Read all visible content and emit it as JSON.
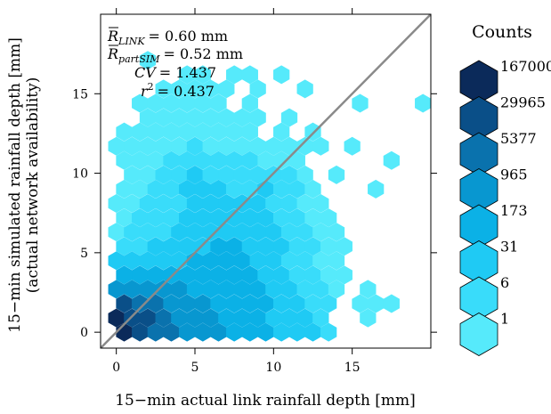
{
  "chart_data": {
    "type": "hexbin",
    "xlabel": "15−min actual link rainfall depth [mm]",
    "ylabel_line1": "15−min simulated rainfall depth [mm]",
    "ylabel_line2": "(actual network availability)",
    "xlim": [
      -1,
      20
    ],
    "ylim": [
      -1,
      20
    ],
    "x_ticks": [
      0,
      5,
      10,
      15
    ],
    "y_ticks": [
      0,
      5,
      10,
      15
    ],
    "x_tick_labels": [
      "0",
      "5",
      "10",
      "15"
    ],
    "y_tick_labels": [
      "0",
      "5",
      "10",
      "15"
    ],
    "reference_line": {
      "type": "1:1",
      "color": "#8a8a8a"
    },
    "annotations": {
      "r_link": {
        "symbol": "R",
        "subscript": "LINK",
        "value_text": "= 0.60 mm"
      },
      "r_partsim": {
        "symbol": "R",
        "subscript": "partSIM",
        "value_text": "= 0.52 mm"
      },
      "cv": {
        "label": "CV",
        "value_text": "= 1.437"
      },
      "r2": {
        "label": "r",
        "superscript": "2",
        "value_text": "= 0.437"
      }
    },
    "legend": {
      "title": "Counts",
      "levels": [
        "167000",
        "29965",
        "5377",
        "965",
        "173",
        "31",
        "6",
        "1"
      ],
      "colors": [
        "#0b2a5a",
        "#0a4f88",
        "#0a72ad",
        "#0897d0",
        "#0bb1e6",
        "#1fcaf4",
        "#39dcfa",
        "#56eafb"
      ]
    },
    "hex_dx": 1.0,
    "bins": [
      {
        "x": 0.5,
        "y": 0.0,
        "l": 0
      },
      {
        "x": 1.5,
        "y": 0.0,
        "l": 1
      },
      {
        "x": 2.5,
        "y": 0.0,
        "l": 2
      },
      {
        "x": 3.5,
        "y": 0.0,
        "l": 2
      },
      {
        "x": 4.5,
        "y": 0.0,
        "l": 3
      },
      {
        "x": 5.5,
        "y": 0.0,
        "l": 3
      },
      {
        "x": 6.5,
        "y": 0.0,
        "l": 3
      },
      {
        "x": 7.5,
        "y": 0.0,
        "l": 4
      },
      {
        "x": 8.5,
        "y": 0.0,
        "l": 4
      },
      {
        "x": 9.5,
        "y": 0.0,
        "l": 4
      },
      {
        "x": 10.5,
        "y": 0.0,
        "l": 5
      },
      {
        "x": 11.5,
        "y": 0.0,
        "l": 5
      },
      {
        "x": 12.5,
        "y": 0.0,
        "l": 5
      },
      {
        "x": 13.5,
        "y": 0.0,
        "l": 6
      },
      {
        "x": 0.0,
        "y": 0.9,
        "l": 0
      },
      {
        "x": 1.0,
        "y": 0.9,
        "l": 1
      },
      {
        "x": 2.0,
        "y": 0.9,
        "l": 1
      },
      {
        "x": 3.0,
        "y": 0.9,
        "l": 2
      },
      {
        "x": 4.0,
        "y": 0.9,
        "l": 3
      },
      {
        "x": 5.0,
        "y": 0.9,
        "l": 3
      },
      {
        "x": 6.0,
        "y": 0.9,
        "l": 3
      },
      {
        "x": 7.0,
        "y": 0.9,
        "l": 4
      },
      {
        "x": 8.0,
        "y": 0.9,
        "l": 4
      },
      {
        "x": 9.0,
        "y": 0.9,
        "l": 4
      },
      {
        "x": 10.0,
        "y": 0.9,
        "l": 5
      },
      {
        "x": 11.0,
        "y": 0.9,
        "l": 5
      },
      {
        "x": 12.0,
        "y": 0.9,
        "l": 5
      },
      {
        "x": 13.0,
        "y": 0.9,
        "l": 6
      },
      {
        "x": 16.0,
        "y": 0.9,
        "l": 7
      },
      {
        "x": 0.5,
        "y": 1.8,
        "l": 1
      },
      {
        "x": 1.5,
        "y": 1.8,
        "l": 2
      },
      {
        "x": 2.5,
        "y": 1.8,
        "l": 2
      },
      {
        "x": 3.5,
        "y": 1.8,
        "l": 3
      },
      {
        "x": 4.5,
        "y": 1.8,
        "l": 3
      },
      {
        "x": 5.5,
        "y": 1.8,
        "l": 3
      },
      {
        "x": 6.5,
        "y": 1.8,
        "l": 4
      },
      {
        "x": 7.5,
        "y": 1.8,
        "l": 4
      },
      {
        "x": 8.5,
        "y": 1.8,
        "l": 4
      },
      {
        "x": 9.5,
        "y": 1.8,
        "l": 4
      },
      {
        "x": 10.5,
        "y": 1.8,
        "l": 5
      },
      {
        "x": 11.5,
        "y": 1.8,
        "l": 5
      },
      {
        "x": 12.5,
        "y": 1.8,
        "l": 6
      },
      {
        "x": 13.5,
        "y": 1.8,
        "l": 6
      },
      {
        "x": 15.5,
        "y": 1.8,
        "l": 7
      },
      {
        "x": 16.5,
        "y": 1.8,
        "l": 7
      },
      {
        "x": 17.5,
        "y": 1.8,
        "l": 7
      },
      {
        "x": 0.0,
        "y": 2.7,
        "l": 3
      },
      {
        "x": 1.0,
        "y": 2.7,
        "l": 3
      },
      {
        "x": 2.0,
        "y": 2.7,
        "l": 3
      },
      {
        "x": 3.0,
        "y": 2.7,
        "l": 3
      },
      {
        "x": 4.0,
        "y": 2.7,
        "l": 3
      },
      {
        "x": 5.0,
        "y": 2.7,
        "l": 4
      },
      {
        "x": 6.0,
        "y": 2.7,
        "l": 4
      },
      {
        "x": 7.0,
        "y": 2.7,
        "l": 4
      },
      {
        "x": 8.0,
        "y": 2.7,
        "l": 4
      },
      {
        "x": 9.0,
        "y": 2.7,
        "l": 4
      },
      {
        "x": 10.0,
        "y": 2.7,
        "l": 5
      },
      {
        "x": 11.0,
        "y": 2.7,
        "l": 5
      },
      {
        "x": 12.0,
        "y": 2.7,
        "l": 6
      },
      {
        "x": 13.0,
        "y": 2.7,
        "l": 6
      },
      {
        "x": 14.0,
        "y": 2.7,
        "l": 7
      },
      {
        "x": 16.0,
        "y": 2.7,
        "l": 7
      },
      {
        "x": 0.5,
        "y": 3.6,
        "l": 4
      },
      {
        "x": 1.5,
        "y": 3.6,
        "l": 4
      },
      {
        "x": 2.5,
        "y": 3.6,
        "l": 4
      },
      {
        "x": 3.5,
        "y": 3.6,
        "l": 4
      },
      {
        "x": 4.5,
        "y": 3.6,
        "l": 4
      },
      {
        "x": 5.5,
        "y": 3.6,
        "l": 4
      },
      {
        "x": 6.5,
        "y": 3.6,
        "l": 4
      },
      {
        "x": 7.5,
        "y": 3.6,
        "l": 4
      },
      {
        "x": 8.5,
        "y": 3.6,
        "l": 4
      },
      {
        "x": 9.5,
        "y": 3.6,
        "l": 5
      },
      {
        "x": 10.5,
        "y": 3.6,
        "l": 5
      },
      {
        "x": 11.5,
        "y": 3.6,
        "l": 6
      },
      {
        "x": 12.5,
        "y": 3.6,
        "l": 6
      },
      {
        "x": 13.5,
        "y": 3.6,
        "l": 7
      },
      {
        "x": 14.5,
        "y": 3.6,
        "l": 7
      },
      {
        "x": 0.0,
        "y": 4.5,
        "l": 5
      },
      {
        "x": 1.0,
        "y": 4.5,
        "l": 5
      },
      {
        "x": 2.0,
        "y": 4.5,
        "l": 5
      },
      {
        "x": 3.0,
        "y": 4.5,
        "l": 5
      },
      {
        "x": 4.0,
        "y": 4.5,
        "l": 5
      },
      {
        "x": 5.0,
        "y": 4.5,
        "l": 4
      },
      {
        "x": 6.0,
        "y": 4.5,
        "l": 4
      },
      {
        "x": 7.0,
        "y": 4.5,
        "l": 4
      },
      {
        "x": 8.0,
        "y": 4.5,
        "l": 4
      },
      {
        "x": 9.0,
        "y": 4.5,
        "l": 5
      },
      {
        "x": 10.0,
        "y": 4.5,
        "l": 5
      },
      {
        "x": 11.0,
        "y": 4.5,
        "l": 6
      },
      {
        "x": 12.0,
        "y": 4.5,
        "l": 6
      },
      {
        "x": 13.0,
        "y": 4.5,
        "l": 7
      },
      {
        "x": 14.0,
        "y": 4.5,
        "l": 7
      },
      {
        "x": 0.5,
        "y": 5.4,
        "l": 6
      },
      {
        "x": 1.5,
        "y": 5.4,
        "l": 6
      },
      {
        "x": 2.5,
        "y": 5.4,
        "l": 5
      },
      {
        "x": 3.5,
        "y": 5.4,
        "l": 5
      },
      {
        "x": 4.5,
        "y": 5.4,
        "l": 5
      },
      {
        "x": 5.5,
        "y": 5.4,
        "l": 5
      },
      {
        "x": 6.5,
        "y": 5.4,
        "l": 4
      },
      {
        "x": 7.5,
        "y": 5.4,
        "l": 4
      },
      {
        "x": 8.5,
        "y": 5.4,
        "l": 5
      },
      {
        "x": 9.5,
        "y": 5.4,
        "l": 5
      },
      {
        "x": 10.5,
        "y": 5.4,
        "l": 5
      },
      {
        "x": 11.5,
        "y": 5.4,
        "l": 6
      },
      {
        "x": 12.5,
        "y": 5.4,
        "l": 6
      },
      {
        "x": 13.5,
        "y": 5.4,
        "l": 7
      },
      {
        "x": 14.5,
        "y": 5.4,
        "l": 7
      },
      {
        "x": 0.0,
        "y": 6.3,
        "l": 7
      },
      {
        "x": 1.0,
        "y": 6.3,
        "l": 6
      },
      {
        "x": 2.0,
        "y": 6.3,
        "l": 6
      },
      {
        "x": 3.0,
        "y": 6.3,
        "l": 6
      },
      {
        "x": 4.0,
        "y": 6.3,
        "l": 5
      },
      {
        "x": 5.0,
        "y": 6.3,
        "l": 5
      },
      {
        "x": 6.0,
        "y": 6.3,
        "l": 5
      },
      {
        "x": 7.0,
        "y": 6.3,
        "l": 5
      },
      {
        "x": 8.0,
        "y": 6.3,
        "l": 5
      },
      {
        "x": 9.0,
        "y": 6.3,
        "l": 5
      },
      {
        "x": 10.0,
        "y": 6.3,
        "l": 5
      },
      {
        "x": 11.0,
        "y": 6.3,
        "l": 6
      },
      {
        "x": 12.0,
        "y": 6.3,
        "l": 6
      },
      {
        "x": 13.0,
        "y": 6.3,
        "l": 7
      },
      {
        "x": 14.0,
        "y": 6.3,
        "l": 7
      },
      {
        "x": 0.5,
        "y": 7.2,
        "l": 7
      },
      {
        "x": 1.5,
        "y": 7.2,
        "l": 6
      },
      {
        "x": 2.5,
        "y": 7.2,
        "l": 6
      },
      {
        "x": 3.5,
        "y": 7.2,
        "l": 6
      },
      {
        "x": 4.5,
        "y": 7.2,
        "l": 5
      },
      {
        "x": 5.5,
        "y": 7.2,
        "l": 5
      },
      {
        "x": 6.5,
        "y": 7.2,
        "l": 5
      },
      {
        "x": 7.5,
        "y": 7.2,
        "l": 5
      },
      {
        "x": 8.5,
        "y": 7.2,
        "l": 5
      },
      {
        "x": 9.5,
        "y": 7.2,
        "l": 5
      },
      {
        "x": 10.5,
        "y": 7.2,
        "l": 6
      },
      {
        "x": 11.5,
        "y": 7.2,
        "l": 6
      },
      {
        "x": 12.5,
        "y": 7.2,
        "l": 7
      },
      {
        "x": 13.5,
        "y": 7.2,
        "l": 7
      },
      {
        "x": 0.0,
        "y": 8.1,
        "l": 7
      },
      {
        "x": 1.0,
        "y": 8.1,
        "l": 7
      },
      {
        "x": 2.0,
        "y": 8.1,
        "l": 6
      },
      {
        "x": 3.0,
        "y": 8.1,
        "l": 6
      },
      {
        "x": 4.0,
        "y": 8.1,
        "l": 6
      },
      {
        "x": 5.0,
        "y": 8.1,
        "l": 5
      },
      {
        "x": 6.0,
        "y": 8.1,
        "l": 5
      },
      {
        "x": 7.0,
        "y": 8.1,
        "l": 5
      },
      {
        "x": 8.0,
        "y": 8.1,
        "l": 5
      },
      {
        "x": 9.0,
        "y": 8.1,
        "l": 5
      },
      {
        "x": 10.0,
        "y": 8.1,
        "l": 6
      },
      {
        "x": 11.0,
        "y": 8.1,
        "l": 6
      },
      {
        "x": 12.0,
        "y": 8.1,
        "l": 7
      },
      {
        "x": 13.0,
        "y": 8.1,
        "l": 7
      },
      {
        "x": 0.5,
        "y": 9.0,
        "l": 7
      },
      {
        "x": 1.5,
        "y": 9.0,
        "l": 7
      },
      {
        "x": 2.5,
        "y": 9.0,
        "l": 6
      },
      {
        "x": 3.5,
        "y": 9.0,
        "l": 6
      },
      {
        "x": 4.5,
        "y": 9.0,
        "l": 5
      },
      {
        "x": 5.5,
        "y": 9.0,
        "l": 5
      },
      {
        "x": 6.5,
        "y": 9.0,
        "l": 5
      },
      {
        "x": 7.5,
        "y": 9.0,
        "l": 6
      },
      {
        "x": 8.5,
        "y": 9.0,
        "l": 6
      },
      {
        "x": 9.5,
        "y": 9.0,
        "l": 5
      },
      {
        "x": 10.5,
        "y": 9.0,
        "l": 6
      },
      {
        "x": 11.5,
        "y": 9.0,
        "l": 6
      },
      {
        "x": 12.5,
        "y": 9.0,
        "l": 7
      },
      {
        "x": 16.5,
        "y": 9.0,
        "l": 7
      },
      {
        "x": 1.0,
        "y": 9.9,
        "l": 7
      },
      {
        "x": 2.0,
        "y": 9.9,
        "l": 7
      },
      {
        "x": 3.0,
        "y": 9.9,
        "l": 6
      },
      {
        "x": 4.0,
        "y": 9.9,
        "l": 6
      },
      {
        "x": 5.0,
        "y": 9.9,
        "l": 5
      },
      {
        "x": 6.0,
        "y": 9.9,
        "l": 6
      },
      {
        "x": 7.0,
        "y": 9.9,
        "l": 6
      },
      {
        "x": 8.0,
        "y": 9.9,
        "l": 6
      },
      {
        "x": 9.0,
        "y": 9.9,
        "l": 6
      },
      {
        "x": 10.0,
        "y": 9.9,
        "l": 6
      },
      {
        "x": 11.0,
        "y": 9.9,
        "l": 6
      },
      {
        "x": 12.0,
        "y": 9.9,
        "l": 7
      },
      {
        "x": 14.0,
        "y": 9.9,
        "l": 7
      },
      {
        "x": 0.5,
        "y": 10.8,
        "l": 7
      },
      {
        "x": 1.5,
        "y": 10.8,
        "l": 7
      },
      {
        "x": 2.5,
        "y": 10.8,
        "l": 7
      },
      {
        "x": 3.5,
        "y": 10.8,
        "l": 6
      },
      {
        "x": 4.5,
        "y": 10.8,
        "l": 6
      },
      {
        "x": 5.5,
        "y": 10.8,
        "l": 6
      },
      {
        "x": 6.5,
        "y": 10.8,
        "l": 6
      },
      {
        "x": 7.5,
        "y": 10.8,
        "l": 6
      },
      {
        "x": 8.5,
        "y": 10.8,
        "l": 6
      },
      {
        "x": 9.5,
        "y": 10.8,
        "l": 7
      },
      {
        "x": 10.5,
        "y": 10.8,
        "l": 7
      },
      {
        "x": 11.5,
        "y": 10.8,
        "l": 7
      },
      {
        "x": 17.5,
        "y": 10.8,
        "l": 7
      },
      {
        "x": 0.0,
        "y": 11.7,
        "l": 7
      },
      {
        "x": 1.0,
        "y": 11.7,
        "l": 7
      },
      {
        "x": 2.0,
        "y": 11.7,
        "l": 7
      },
      {
        "x": 3.0,
        "y": 11.7,
        "l": 7
      },
      {
        "x": 4.0,
        "y": 11.7,
        "l": 7
      },
      {
        "x": 5.0,
        "y": 11.7,
        "l": 6
      },
      {
        "x": 6.0,
        "y": 11.7,
        "l": 7
      },
      {
        "x": 7.0,
        "y": 11.7,
        "l": 7
      },
      {
        "x": 8.0,
        "y": 11.7,
        "l": 7
      },
      {
        "x": 9.0,
        "y": 11.7,
        "l": 7
      },
      {
        "x": 10.0,
        "y": 11.7,
        "l": 7
      },
      {
        "x": 11.0,
        "y": 11.7,
        "l": 7
      },
      {
        "x": 12.0,
        "y": 11.7,
        "l": 7
      },
      {
        "x": 13.0,
        "y": 11.7,
        "l": 7
      },
      {
        "x": 15.0,
        "y": 11.7,
        "l": 7
      },
      {
        "x": 0.5,
        "y": 12.6,
        "l": 7
      },
      {
        "x": 1.5,
        "y": 12.6,
        "l": 7
      },
      {
        "x": 2.5,
        "y": 12.6,
        "l": 7
      },
      {
        "x": 3.5,
        "y": 12.6,
        "l": 7
      },
      {
        "x": 4.5,
        "y": 12.6,
        "l": 7
      },
      {
        "x": 5.5,
        "y": 12.6,
        "l": 7
      },
      {
        "x": 6.5,
        "y": 12.6,
        "l": 7
      },
      {
        "x": 7.5,
        "y": 12.6,
        "l": 7
      },
      {
        "x": 8.5,
        "y": 12.6,
        "l": 7
      },
      {
        "x": 10.5,
        "y": 12.6,
        "l": 7
      },
      {
        "x": 12.5,
        "y": 12.6,
        "l": 7
      },
      {
        "x": 2.0,
        "y": 13.5,
        "l": 7
      },
      {
        "x": 3.0,
        "y": 13.5,
        "l": 7
      },
      {
        "x": 4.0,
        "y": 13.5,
        "l": 7
      },
      {
        "x": 5.0,
        "y": 13.5,
        "l": 7
      },
      {
        "x": 6.0,
        "y": 13.5,
        "l": 7
      },
      {
        "x": 7.0,
        "y": 13.5,
        "l": 7
      },
      {
        "x": 8.0,
        "y": 13.5,
        "l": 7
      },
      {
        "x": 9.0,
        "y": 13.5,
        "l": 7
      },
      {
        "x": 11.0,
        "y": 13.5,
        "l": 7
      },
      {
        "x": 1.5,
        "y": 14.4,
        "l": 7
      },
      {
        "x": 2.5,
        "y": 14.4,
        "l": 7
      },
      {
        "x": 3.5,
        "y": 14.4,
        "l": 7
      },
      {
        "x": 4.5,
        "y": 14.4,
        "l": 7
      },
      {
        "x": 5.5,
        "y": 14.4,
        "l": 7
      },
      {
        "x": 6.5,
        "y": 14.4,
        "l": 7
      },
      {
        "x": 8.5,
        "y": 14.4,
        "l": 7
      },
      {
        "x": 15.5,
        "y": 14.4,
        "l": 7
      },
      {
        "x": 19.5,
        "y": 14.4,
        "l": 7
      },
      {
        "x": 3.0,
        "y": 15.3,
        "l": 7
      },
      {
        "x": 4.0,
        "y": 15.3,
        "l": 7
      },
      {
        "x": 5.0,
        "y": 15.3,
        "l": 7
      },
      {
        "x": 6.0,
        "y": 15.3,
        "l": 7
      },
      {
        "x": 7.0,
        "y": 15.3,
        "l": 7
      },
      {
        "x": 9.0,
        "y": 15.3,
        "l": 7
      },
      {
        "x": 12.0,
        "y": 15.3,
        "l": 7
      },
      {
        "x": 4.5,
        "y": 16.2,
        "l": 7
      },
      {
        "x": 5.5,
        "y": 16.2,
        "l": 7
      },
      {
        "x": 7.5,
        "y": 16.2,
        "l": 7
      },
      {
        "x": 8.5,
        "y": 16.2,
        "l": 7
      },
      {
        "x": 10.5,
        "y": 16.2,
        "l": 7
      },
      {
        "x": 2.0,
        "y": 17.1,
        "l": 7
      }
    ]
  }
}
